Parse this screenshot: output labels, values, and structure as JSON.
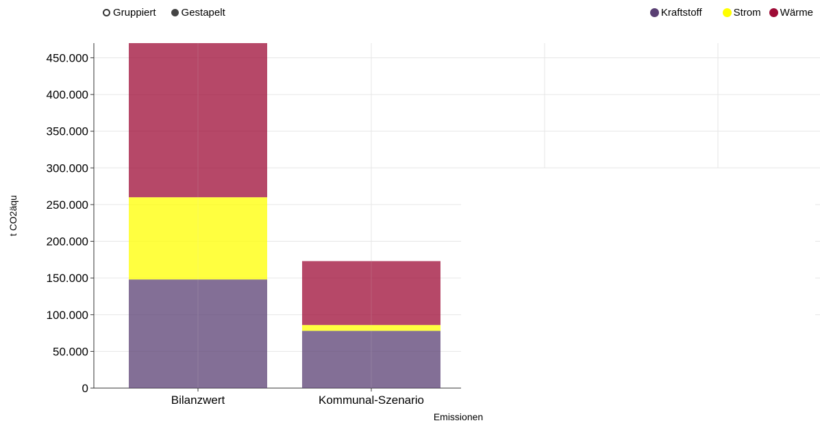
{
  "controls": {
    "grouped_label": "Gruppiert",
    "stacked_label": "Gestapelt",
    "selected": "Gestapelt"
  },
  "chart_data": {
    "type": "bar",
    "stacked": true,
    "categories": [
      "Bilanzwert",
      "Kommunal-Szenario"
    ],
    "series": [
      {
        "name": "Kraftstoff",
        "color": "#593f73",
        "values": [
          148000,
          78000
        ]
      },
      {
        "name": "Strom",
        "color": "#ffff00",
        "values": [
          112000,
          8000
        ]
      },
      {
        "name": "Wärme",
        "color": "#9e0b36",
        "values": [
          210000,
          87000
        ]
      }
    ],
    "xlabel": "Emissionen",
    "ylabel": "t CO2äqu",
    "ylim": [
      0,
      470000
    ],
    "yticks": [
      0,
      50000,
      100000,
      150000,
      200000,
      250000,
      300000,
      350000,
      400000,
      450000
    ],
    "ytick_labels": [
      "0",
      "50.000",
      "100.000",
      "150.000",
      "200.000",
      "250.000",
      "300.000",
      "350.000",
      "400.000",
      "450.000"
    ],
    "grid": true,
    "legend_position": "top-right"
  }
}
